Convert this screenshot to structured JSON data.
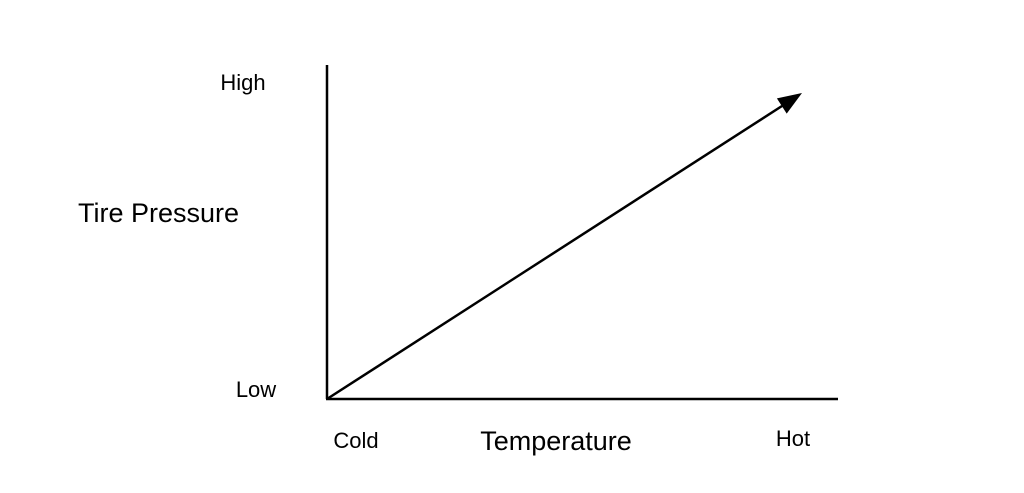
{
  "y_axis": {
    "label": "Tire Pressure",
    "high": "High",
    "low": "Low"
  },
  "x_axis": {
    "label": "Temperature",
    "low": "Cold",
    "high": "Hot"
  }
}
